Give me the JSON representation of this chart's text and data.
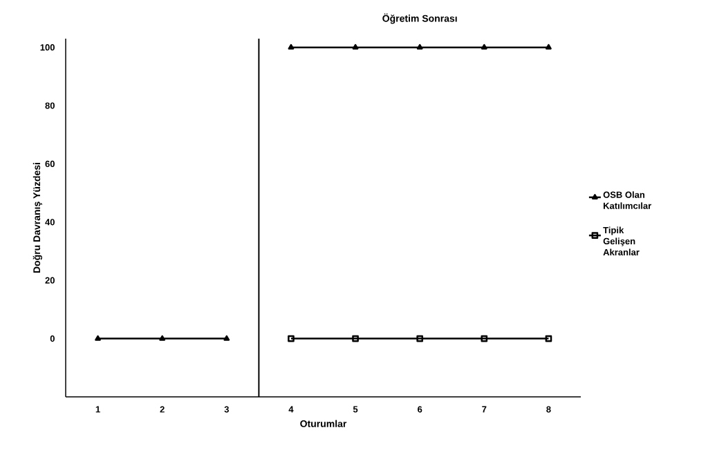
{
  "chart_data": {
    "type": "line",
    "title": "Öğretim Sonrası",
    "xlabel": "Oturumlar",
    "ylabel": "Doğru Davranış Yüzdesi",
    "x": [
      1,
      2,
      3,
      4,
      5,
      6,
      7,
      8
    ],
    "series": [
      {
        "name": "OSB Olan Katılımcılar",
        "color": "#000000",
        "marker": "triangle",
        "values": [
          0,
          0,
          0,
          null,
          null,
          null,
          null,
          null
        ]
      },
      {
        "color": "#000000",
        "marker": "triangle",
        "values": [
          null,
          null,
          null,
          100,
          100,
          100,
          100,
          100
        ]
      },
      {
        "name": "Tipik Gelişen Akranlar",
        "color": "#000000",
        "marker": "square",
        "values": [
          null,
          null,
          null,
          0,
          0,
          0,
          0,
          0
        ]
      }
    ],
    "xlim": [
      0.5,
      8.5
    ],
    "xticks": [
      1,
      2,
      3,
      4,
      5,
      6,
      7,
      8
    ],
    "ylim": [
      -20,
      103
    ],
    "yticks": [
      0,
      20,
      40,
      60,
      80,
      100
    ],
    "ref_lines": [
      {
        "axis": "x",
        "value": 3.5,
        "color": "#000000"
      }
    ],
    "legend": "right",
    "grid": false
  }
}
